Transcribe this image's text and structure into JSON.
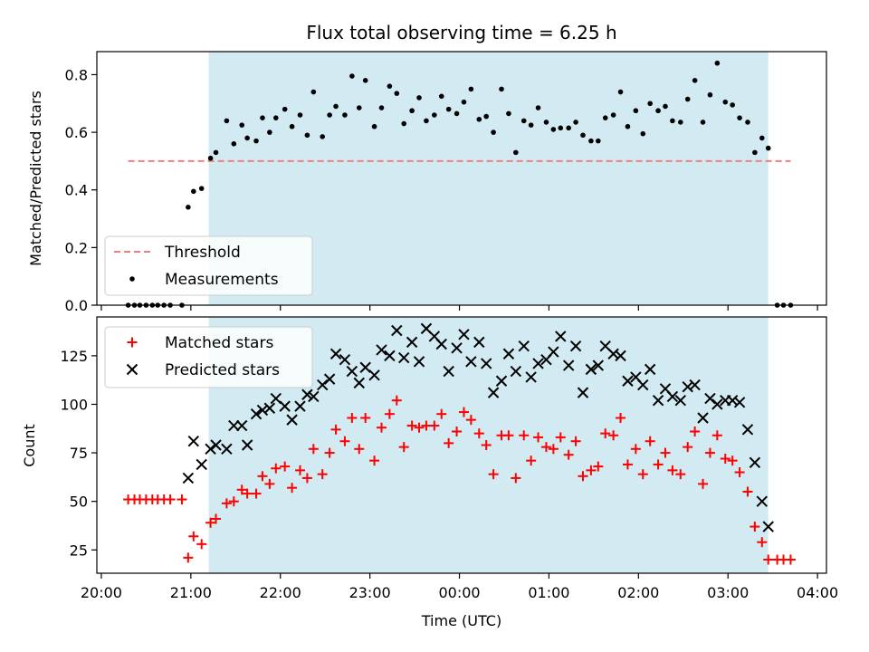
{
  "chart_data": [
    {
      "type": "scatter",
      "title": "Flux total observing time = 6.25 h",
      "ylabel": "Matched/Predicted stars",
      "xlabel": "",
      "ylim": [
        0,
        0.88
      ],
      "yticks": [
        0.0,
        0.2,
        0.4,
        0.6,
        0.8
      ],
      "ytick_labels": [
        "0.0",
        "0.2",
        "0.4",
        "0.6",
        "0.8"
      ],
      "observing_window": {
        "start": 21.2,
        "end": 27.45,
        "color": "#add8e6"
      },
      "threshold": {
        "name": "Threshold",
        "value": 0.5,
        "x_range": [
          20.3,
          27.7
        ],
        "color": "#f08080"
      },
      "legend": {
        "location": "lower-left",
        "entries": [
          "Threshold",
          "Measurements"
        ]
      },
      "series": [
        {
          "name": "Measurements",
          "marker": "dot",
          "color": "#000000",
          "points": [
            [
              20.3,
              0
            ],
            [
              20.37,
              0
            ],
            [
              20.43,
              0
            ],
            [
              20.5,
              0
            ],
            [
              20.57,
              0
            ],
            [
              20.63,
              0
            ],
            [
              20.7,
              0
            ],
            [
              20.77,
              0
            ],
            [
              20.9,
              0
            ],
            [
              20.97,
              0.34
            ],
            [
              21.03,
              0.395
            ],
            [
              21.12,
              0.405
            ],
            [
              21.22,
              0.51
            ],
            [
              21.28,
              0.53
            ],
            [
              21.4,
              0.64
            ],
            [
              21.48,
              0.56
            ],
            [
              21.57,
              0.625
            ],
            [
              21.63,
              0.58
            ],
            [
              21.73,
              0.57
            ],
            [
              21.8,
              0.65
            ],
            [
              21.88,
              0.6
            ],
            [
              21.95,
              0.65
            ],
            [
              22.05,
              0.68
            ],
            [
              22.13,
              0.62
            ],
            [
              22.22,
              0.66
            ],
            [
              22.3,
              0.59
            ],
            [
              22.37,
              0.74
            ],
            [
              22.47,
              0.585
            ],
            [
              22.55,
              0.66
            ],
            [
              22.62,
              0.69
            ],
            [
              22.72,
              0.66
            ],
            [
              22.8,
              0.795
            ],
            [
              22.88,
              0.685
            ],
            [
              22.95,
              0.78
            ],
            [
              23.05,
              0.62
            ],
            [
              23.13,
              0.685
            ],
            [
              23.22,
              0.76
            ],
            [
              23.3,
              0.735
            ],
            [
              23.38,
              0.63
            ],
            [
              23.47,
              0.675
            ],
            [
              23.55,
              0.72
            ],
            [
              23.63,
              0.64
            ],
            [
              23.72,
              0.66
            ],
            [
              23.8,
              0.725
            ],
            [
              23.88,
              0.68
            ],
            [
              23.97,
              0.665
            ],
            [
              24.05,
              0.705
            ],
            [
              24.13,
              0.75
            ],
            [
              24.22,
              0.645
            ],
            [
              24.3,
              0.655
            ],
            [
              24.38,
              0.6
            ],
            [
              24.47,
              0.75
            ],
            [
              24.55,
              0.665
            ],
            [
              24.63,
              0.53
            ],
            [
              24.72,
              0.64
            ],
            [
              24.8,
              0.625
            ],
            [
              24.88,
              0.685
            ],
            [
              24.97,
              0.635
            ],
            [
              25.05,
              0.61
            ],
            [
              25.13,
              0.615
            ],
            [
              25.22,
              0.615
            ],
            [
              25.3,
              0.635
            ],
            [
              25.38,
              0.59
            ],
            [
              25.47,
              0.57
            ],
            [
              25.55,
              0.57
            ],
            [
              25.63,
              0.65
            ],
            [
              25.72,
              0.66
            ],
            [
              25.8,
              0.74
            ],
            [
              25.88,
              0.62
            ],
            [
              25.97,
              0.675
            ],
            [
              26.05,
              0.595
            ],
            [
              26.13,
              0.7
            ],
            [
              26.22,
              0.675
            ],
            [
              26.3,
              0.69
            ],
            [
              26.38,
              0.64
            ],
            [
              26.47,
              0.635
            ],
            [
              26.55,
              0.715
            ],
            [
              26.63,
              0.78
            ],
            [
              26.72,
              0.635
            ],
            [
              26.8,
              0.73
            ],
            [
              26.88,
              0.84
            ],
            [
              26.97,
              0.705
            ],
            [
              27.05,
              0.695
            ],
            [
              27.13,
              0.65
            ],
            [
              27.22,
              0.635
            ],
            [
              27.3,
              0.53
            ],
            [
              27.38,
              0.58
            ],
            [
              27.45,
              0.545
            ],
            [
              27.55,
              0
            ],
            [
              27.62,
              0
            ],
            [
              27.7,
              0
            ]
          ]
        }
      ]
    },
    {
      "type": "scatter",
      "title": "",
      "xlabel": "Time (UTC)",
      "ylabel": "Count",
      "xlim": [
        19.95,
        28.1
      ],
      "ylim": [
        13,
        145
      ],
      "xticks": [
        20,
        21,
        22,
        23,
        24,
        25,
        26,
        27,
        28
      ],
      "xtick_labels": [
        "20:00",
        "21:00",
        "22:00",
        "23:00",
        "00:00",
        "01:00",
        "02:00",
        "03:00",
        "04:00"
      ],
      "yticks": [
        25,
        50,
        75,
        100,
        125
      ],
      "ytick_labels": [
        "25",
        "50",
        "75",
        "100",
        "125"
      ],
      "observing_window": {
        "start": 21.2,
        "end": 27.45,
        "color": "#add8e6"
      },
      "legend": {
        "location": "upper-left",
        "entries": [
          "Matched stars",
          "Predicted stars"
        ]
      },
      "series": [
        {
          "name": "Matched stars",
          "marker": "plus",
          "color": "#ff0000",
          "points": [
            [
              20.3,
              51
            ],
            [
              20.37,
              51
            ],
            [
              20.43,
              51
            ],
            [
              20.5,
              51
            ],
            [
              20.57,
              51
            ],
            [
              20.63,
              51
            ],
            [
              20.7,
              51
            ],
            [
              20.77,
              51
            ],
            [
              20.9,
              51
            ],
            [
              20.97,
              21
            ],
            [
              21.03,
              32
            ],
            [
              21.12,
              28
            ],
            [
              21.22,
              39
            ],
            [
              21.28,
              41
            ],
            [
              21.4,
              49
            ],
            [
              21.48,
              50
            ],
            [
              21.57,
              56
            ],
            [
              21.63,
              54
            ],
            [
              21.73,
              54
            ],
            [
              21.8,
              63
            ],
            [
              21.88,
              59
            ],
            [
              21.95,
              67
            ],
            [
              22.05,
              68
            ],
            [
              22.13,
              57
            ],
            [
              22.22,
              66
            ],
            [
              22.3,
              62
            ],
            [
              22.37,
              77
            ],
            [
              22.47,
              64
            ],
            [
              22.55,
              75
            ],
            [
              22.62,
              87
            ],
            [
              22.72,
              81
            ],
            [
              22.8,
              93
            ],
            [
              22.88,
              77
            ],
            [
              22.95,
              93
            ],
            [
              23.05,
              71
            ],
            [
              23.13,
              88
            ],
            [
              23.22,
              95
            ],
            [
              23.3,
              102
            ],
            [
              23.38,
              78
            ],
            [
              23.47,
              89
            ],
            [
              23.55,
              88
            ],
            [
              23.63,
              89
            ],
            [
              23.72,
              89
            ],
            [
              23.8,
              95
            ],
            [
              23.88,
              80
            ],
            [
              23.97,
              86
            ],
            [
              24.05,
              96
            ],
            [
              24.13,
              92
            ],
            [
              24.22,
              85
            ],
            [
              24.3,
              79
            ],
            [
              24.38,
              64
            ],
            [
              24.47,
              84
            ],
            [
              24.55,
              84
            ],
            [
              24.63,
              62
            ],
            [
              24.72,
              84
            ],
            [
              24.8,
              71
            ],
            [
              24.88,
              83
            ],
            [
              24.97,
              78
            ],
            [
              25.05,
              77
            ],
            [
              25.13,
              83
            ],
            [
              25.22,
              74
            ],
            [
              25.3,
              81
            ],
            [
              25.38,
              63
            ],
            [
              25.47,
              66
            ],
            [
              25.55,
              68
            ],
            [
              25.63,
              85
            ],
            [
              25.72,
              84
            ],
            [
              25.8,
              93
            ],
            [
              25.88,
              69
            ],
            [
              25.97,
              77
            ],
            [
              26.05,
              64
            ],
            [
              26.13,
              81
            ],
            [
              26.22,
              69
            ],
            [
              26.3,
              75
            ],
            [
              26.38,
              66
            ],
            [
              26.47,
              64
            ],
            [
              26.55,
              78
            ],
            [
              26.63,
              86
            ],
            [
              26.72,
              59
            ],
            [
              26.8,
              75
            ],
            [
              26.88,
              84
            ],
            [
              26.97,
              72
            ],
            [
              27.05,
              71
            ],
            [
              27.13,
              65
            ],
            [
              27.22,
              55
            ],
            [
              27.3,
              37
            ],
            [
              27.38,
              29
            ],
            [
              27.45,
              20
            ],
            [
              27.55,
              20
            ],
            [
              27.62,
              20
            ],
            [
              27.7,
              20
            ]
          ]
        },
        {
          "name": "Predicted stars",
          "marker": "x",
          "color": "#000000",
          "points": [
            [
              20.97,
              62
            ],
            [
              21.03,
              81
            ],
            [
              21.12,
              69
            ],
            [
              21.22,
              77
            ],
            [
              21.28,
              79
            ],
            [
              21.4,
              77
            ],
            [
              21.48,
              89
            ],
            [
              21.57,
              89
            ],
            [
              21.63,
              79
            ],
            [
              21.73,
              95
            ],
            [
              21.8,
              97
            ],
            [
              21.88,
              98
            ],
            [
              21.95,
              103
            ],
            [
              22.05,
              99
            ],
            [
              22.13,
              92
            ],
            [
              22.22,
              99
            ],
            [
              22.3,
              105
            ],
            [
              22.37,
              104
            ],
            [
              22.47,
              110
            ],
            [
              22.55,
              113
            ],
            [
              22.62,
              126
            ],
            [
              22.72,
              123
            ],
            [
              22.8,
              117
            ],
            [
              22.88,
              111
            ],
            [
              22.95,
              119
            ],
            [
              23.05,
              115
            ],
            [
              23.13,
              128
            ],
            [
              23.22,
              125
            ],
            [
              23.3,
              138
            ],
            [
              23.38,
              124
            ],
            [
              23.47,
              132
            ],
            [
              23.55,
              122
            ],
            [
              23.63,
              139
            ],
            [
              23.72,
              135
            ],
            [
              23.8,
              131
            ],
            [
              23.88,
              117
            ],
            [
              23.97,
              129
            ],
            [
              24.05,
              136
            ],
            [
              24.13,
              122
            ],
            [
              24.22,
              132
            ],
            [
              24.3,
              121
            ],
            [
              24.38,
              106
            ],
            [
              24.47,
              112
            ],
            [
              24.55,
              126
            ],
            [
              24.63,
              117
            ],
            [
              24.72,
              130
            ],
            [
              24.8,
              114
            ],
            [
              24.88,
              121
            ],
            [
              24.97,
              123
            ],
            [
              25.05,
              127
            ],
            [
              25.13,
              135
            ],
            [
              25.22,
              120
            ],
            [
              25.3,
              130
            ],
            [
              25.38,
              106
            ],
            [
              25.47,
              118
            ],
            [
              25.55,
              120
            ],
            [
              25.63,
              130
            ],
            [
              25.72,
              126
            ],
            [
              25.8,
              125
            ],
            [
              25.88,
              112
            ],
            [
              25.97,
              114
            ],
            [
              26.05,
              110
            ],
            [
              26.13,
              118
            ],
            [
              26.22,
              102
            ],
            [
              26.3,
              108
            ],
            [
              26.38,
              104
            ],
            [
              26.47,
              102
            ],
            [
              26.55,
              109
            ],
            [
              26.63,
              110
            ],
            [
              26.72,
              93
            ],
            [
              26.8,
              103
            ],
            [
              26.88,
              100
            ],
            [
              26.97,
              102
            ],
            [
              27.05,
              102
            ],
            [
              27.13,
              101
            ],
            [
              27.22,
              87
            ],
            [
              27.3,
              70
            ],
            [
              27.38,
              50
            ],
            [
              27.45,
              37
            ]
          ]
        }
      ]
    }
  ]
}
